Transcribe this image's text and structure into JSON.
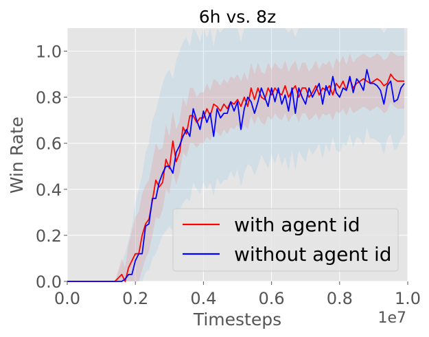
{
  "chart_data": {
    "type": "line",
    "title": "6h vs. 8z",
    "xlabel": "Timesteps",
    "ylabel": "Win Rate",
    "x_offset_label": "1e7",
    "xlim": [
      0,
      1.0
    ],
    "ylim": [
      0,
      1.1
    ],
    "xticks": [
      "0.0",
      "0.2",
      "0.4",
      "0.6",
      "0.8",
      "1.0"
    ],
    "yticks": [
      "0.0",
      "0.2",
      "0.4",
      "0.6",
      "0.8",
      "1.0"
    ],
    "grid": true,
    "legend_position": "lower-right",
    "x": [
      0.0,
      0.02,
      0.04,
      0.06,
      0.08,
      0.1,
      0.12,
      0.14,
      0.16,
      0.17,
      0.18,
      0.19,
      0.2,
      0.21,
      0.22,
      0.23,
      0.24,
      0.25,
      0.26,
      0.27,
      0.28,
      0.29,
      0.3,
      0.31,
      0.32,
      0.33,
      0.34,
      0.35,
      0.36,
      0.37,
      0.38,
      0.39,
      0.4,
      0.41,
      0.42,
      0.43,
      0.44,
      0.45,
      0.46,
      0.47,
      0.48,
      0.49,
      0.5,
      0.51,
      0.52,
      0.53,
      0.54,
      0.55,
      0.56,
      0.57,
      0.58,
      0.59,
      0.6,
      0.61,
      0.62,
      0.63,
      0.64,
      0.65,
      0.66,
      0.67,
      0.68,
      0.69,
      0.7,
      0.71,
      0.72,
      0.73,
      0.74,
      0.75,
      0.76,
      0.77,
      0.78,
      0.79,
      0.8,
      0.81,
      0.82,
      0.83,
      0.84,
      0.85,
      0.86,
      0.87,
      0.88,
      0.89,
      0.9,
      0.91,
      0.92,
      0.93,
      0.94,
      0.95,
      0.96,
      0.97,
      0.98,
      0.99
    ],
    "series": [
      {
        "name": "with agent id",
        "color": "#ff0000",
        "values": [
          0.0,
          0.0,
          0.0,
          0.0,
          0.0,
          0.0,
          0.0,
          0.0,
          0.03,
          0.0,
          0.06,
          0.09,
          0.12,
          0.12,
          0.2,
          0.25,
          0.27,
          0.35,
          0.44,
          0.41,
          0.43,
          0.53,
          0.49,
          0.61,
          0.52,
          0.56,
          0.67,
          0.64,
          0.72,
          0.72,
          0.69,
          0.71,
          0.71,
          0.75,
          0.72,
          0.77,
          0.76,
          0.74,
          0.77,
          0.75,
          0.78,
          0.77,
          0.79,
          0.76,
          0.8,
          0.76,
          0.84,
          0.79,
          0.84,
          0.8,
          0.79,
          0.84,
          0.81,
          0.84,
          0.82,
          0.81,
          0.85,
          0.8,
          0.83,
          0.85,
          0.8,
          0.84,
          0.84,
          0.8,
          0.82,
          0.85,
          0.81,
          0.84,
          0.83,
          0.85,
          0.81,
          0.86,
          0.84,
          0.87,
          0.83,
          0.88,
          0.84,
          0.86,
          0.87,
          0.88,
          0.87,
          0.86,
          0.87,
          0.88,
          0.87,
          0.85,
          0.86,
          0.9,
          0.88,
          0.87,
          0.87,
          0.87
        ]
      },
      {
        "name": "without agent id",
        "color": "#0000ff",
        "values": [
          0.0,
          0.0,
          0.0,
          0.0,
          0.0,
          0.0,
          0.0,
          0.0,
          0.0,
          0.01,
          0.03,
          0.03,
          0.09,
          0.12,
          0.12,
          0.24,
          0.25,
          0.36,
          0.36,
          0.43,
          0.47,
          0.5,
          0.5,
          0.47,
          0.56,
          0.59,
          0.63,
          0.66,
          0.63,
          0.75,
          0.7,
          0.66,
          0.74,
          0.69,
          0.73,
          0.63,
          0.75,
          0.71,
          0.73,
          0.73,
          0.78,
          0.74,
          0.78,
          0.66,
          0.75,
          0.8,
          0.78,
          0.73,
          0.78,
          0.84,
          0.8,
          0.76,
          0.84,
          0.78,
          0.84,
          0.77,
          0.81,
          0.74,
          0.84,
          0.73,
          0.84,
          0.8,
          0.77,
          0.84,
          0.8,
          0.83,
          0.86,
          0.77,
          0.85,
          0.81,
          0.89,
          0.82,
          0.8,
          0.84,
          0.83,
          0.89,
          0.82,
          0.88,
          0.86,
          0.83,
          0.92,
          0.86,
          0.86,
          0.85,
          0.83,
          0.77,
          0.85,
          0.87,
          0.78,
          0.79,
          0.84,
          0.86
        ]
      }
    ],
    "bands": [
      {
        "series": "with agent id",
        "color": "#f08080",
        "lower": [
          0.0,
          0.0,
          0.0,
          0.0,
          0.0,
          0.0,
          0.0,
          0.0,
          0.0,
          0.0,
          0.0,
          0.0,
          0.0,
          0.0,
          0.05,
          0.1,
          0.13,
          0.2,
          0.28,
          0.27,
          0.31,
          0.4,
          0.38,
          0.48,
          0.42,
          0.47,
          0.56,
          0.54,
          0.6,
          0.6,
          0.58,
          0.6,
          0.6,
          0.63,
          0.61,
          0.65,
          0.65,
          0.63,
          0.66,
          0.64,
          0.67,
          0.66,
          0.68,
          0.65,
          0.68,
          0.66,
          0.72,
          0.68,
          0.72,
          0.69,
          0.68,
          0.72,
          0.7,
          0.73,
          0.71,
          0.7,
          0.73,
          0.69,
          0.72,
          0.73,
          0.69,
          0.73,
          0.73,
          0.7,
          0.71,
          0.73,
          0.7,
          0.73,
          0.72,
          0.73,
          0.7,
          0.74,
          0.73,
          0.75,
          0.72,
          0.76,
          0.73,
          0.74,
          0.75,
          0.76,
          0.75,
          0.74,
          0.75,
          0.76,
          0.75,
          0.73,
          0.74,
          0.78,
          0.76,
          0.75,
          0.75,
          0.75
        ],
        "upper": [
          0.0,
          0.0,
          0.0,
          0.0,
          0.0,
          0.0,
          0.0,
          0.0,
          0.1,
          0.06,
          0.16,
          0.22,
          0.28,
          0.3,
          0.38,
          0.42,
          0.44,
          0.52,
          0.6,
          0.57,
          0.58,
          0.68,
          0.63,
          0.74,
          0.66,
          0.7,
          0.8,
          0.76,
          0.84,
          0.84,
          0.8,
          0.82,
          0.82,
          0.86,
          0.83,
          0.88,
          0.87,
          0.85,
          0.88,
          0.86,
          0.89,
          0.88,
          0.9,
          0.87,
          0.91,
          0.87,
          0.95,
          0.9,
          0.95,
          0.91,
          0.9,
          0.95,
          0.92,
          0.95,
          0.93,
          0.92,
          0.96,
          0.91,
          0.94,
          0.96,
          0.91,
          0.95,
          0.95,
          0.91,
          0.93,
          0.96,
          0.92,
          0.95,
          0.94,
          0.96,
          0.92,
          0.97,
          0.95,
          0.98,
          0.94,
          0.99,
          0.95,
          0.97,
          0.98,
          0.99,
          0.98,
          0.97,
          0.98,
          0.99,
          0.98,
          0.96,
          0.97,
          1.0,
          0.99,
          0.98,
          0.98,
          0.98
        ]
      },
      {
        "series": "without agent id",
        "color": "#8ec8e8",
        "lower": [
          0.0,
          0.0,
          0.0,
          0.0,
          0.0,
          0.0,
          0.0,
          0.0,
          0.0,
          0.0,
          0.0,
          0.0,
          0.0,
          0.0,
          0.0,
          0.04,
          0.05,
          0.1,
          0.12,
          0.16,
          0.2,
          0.22,
          0.24,
          0.22,
          0.28,
          0.31,
          0.34,
          0.36,
          0.35,
          0.43,
          0.4,
          0.38,
          0.43,
          0.4,
          0.43,
          0.37,
          0.45,
          0.42,
          0.44,
          0.44,
          0.48,
          0.45,
          0.49,
          0.41,
          0.47,
          0.51,
          0.5,
          0.46,
          0.5,
          0.55,
          0.52,
          0.49,
          0.55,
          0.51,
          0.56,
          0.5,
          0.54,
          0.48,
          0.57,
          0.48,
          0.57,
          0.54,
          0.52,
          0.58,
          0.55,
          0.57,
          0.6,
          0.53,
          0.6,
          0.56,
          0.63,
          0.57,
          0.56,
          0.6,
          0.59,
          0.64,
          0.58,
          0.63,
          0.62,
          0.59,
          0.67,
          0.62,
          0.62,
          0.61,
          0.6,
          0.55,
          0.62,
          0.64,
          0.57,
          0.58,
          0.62,
          0.64
        ],
        "upper": [
          0.0,
          0.0,
          0.0,
          0.0,
          0.0,
          0.0,
          0.0,
          0.0,
          0.08,
          0.12,
          0.18,
          0.24,
          0.34,
          0.4,
          0.46,
          0.56,
          0.6,
          0.7,
          0.74,
          0.8,
          0.86,
          0.9,
          0.92,
          0.88,
          0.96,
          1.0,
          1.04,
          1.06,
          1.02,
          1.1,
          1.08,
          1.04,
          1.1,
          1.06,
          1.1,
          1.02,
          1.1,
          1.08,
          1.1,
          1.1,
          1.1,
          1.1,
          1.1,
          1.04,
          1.1,
          1.1,
          1.1,
          1.1,
          1.1,
          1.1,
          1.1,
          1.1,
          1.1,
          1.1,
          1.1,
          1.1,
          1.1,
          1.08,
          1.1,
          1.06,
          1.1,
          1.1,
          1.1,
          1.1,
          1.1,
          1.1,
          1.1,
          1.1,
          1.1,
          1.1,
          1.1,
          1.1,
          1.1,
          1.1,
          1.1,
          1.1,
          1.1,
          1.1,
          1.1,
          1.1,
          1.1,
          1.1,
          1.1,
          1.1,
          1.1,
          1.08,
          1.1,
          1.1,
          1.1,
          1.1,
          1.1,
          1.1
        ]
      }
    ]
  }
}
